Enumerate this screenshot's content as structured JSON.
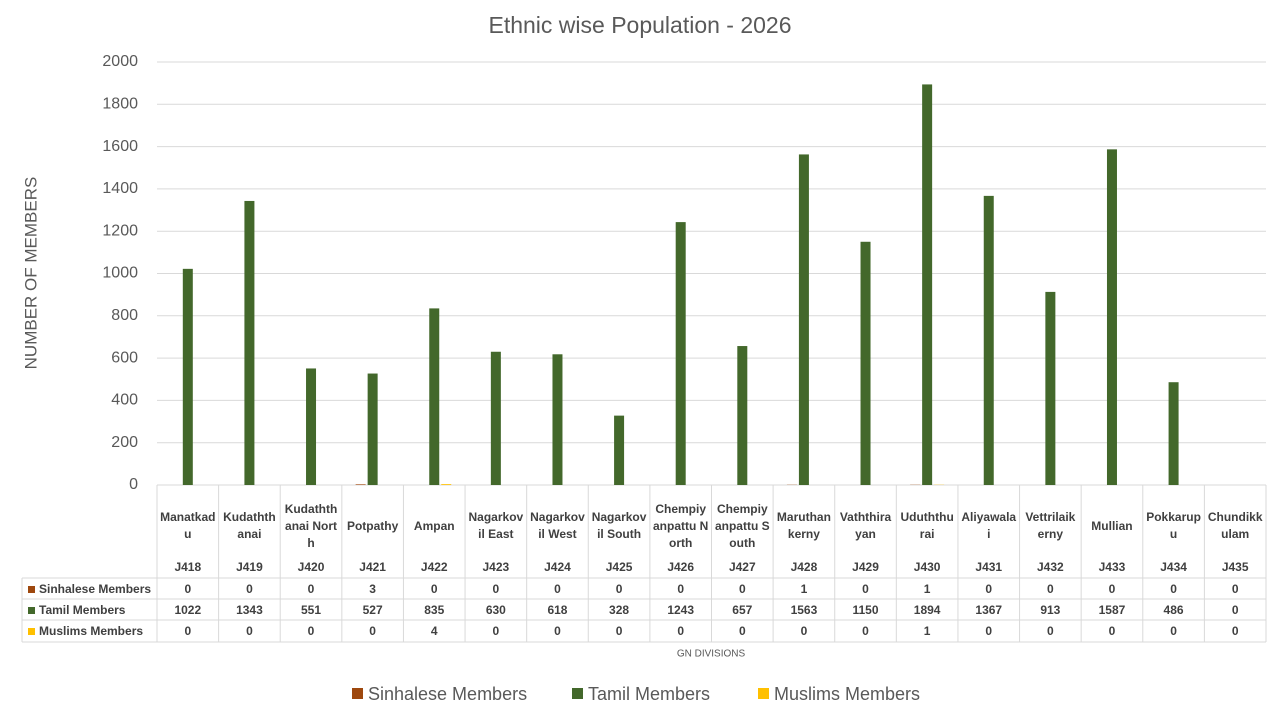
{
  "chart_data": {
    "type": "bar",
    "title": "Ethnic wise Population - 2026",
    "y_label": "NUMBER OF MEMBERS",
    "x_label": "GN DIVISIONS",
    "categories": [
      "Manatkadu",
      "Kudaththanai",
      "Kudaththanai North",
      "Potpathy",
      "Ampan",
      "Nagarkovil East",
      "Nagarkovil West",
      "Nagarkovil South",
      "Chempiyanpattu North",
      "Chempiyanpattu South",
      "Maruthankerny",
      "Vaththirayan",
      "Uduththurai",
      "Aliyawalai",
      "Vettrilaikerny",
      "Mullian",
      "Pokkarupu",
      "Chundikkulam"
    ],
    "codes": [
      "J418",
      "J419",
      "J420",
      "J421",
      "J422",
      "J423",
      "J424",
      "J425",
      "J426",
      "J427",
      "J428",
      "J429",
      "J430",
      "J431",
      "J432",
      "J433",
      "J434",
      "J435"
    ],
    "series": [
      {
        "name": "Sinhalese Members",
        "color": "#9e480e",
        "values": [
          0,
          0,
          0,
          3,
          0,
          0,
          0,
          0,
          0,
          0,
          1,
          0,
          1,
          0,
          0,
          0,
          0,
          0
        ]
      },
      {
        "name": "Tamil Members",
        "color": "#43682b",
        "values": [
          1022,
          1343,
          551,
          527,
          835,
          630,
          618,
          328,
          1243,
          657,
          1563,
          1150,
          1894,
          1367,
          913,
          1587,
          486,
          0
        ]
      },
      {
        "name": "Muslims Members",
        "color": "#ffc000",
        "values": [
          0,
          0,
          0,
          0,
          4,
          0,
          0,
          0,
          0,
          0,
          0,
          0,
          1,
          0,
          0,
          0,
          0,
          0
        ]
      }
    ],
    "ylim": [
      0,
      2000
    ],
    "yticks": [
      0,
      200,
      400,
      600,
      800,
      1000,
      1200,
      1400,
      1600,
      1800,
      2000
    ],
    "grid": true,
    "legend": "bottom"
  }
}
